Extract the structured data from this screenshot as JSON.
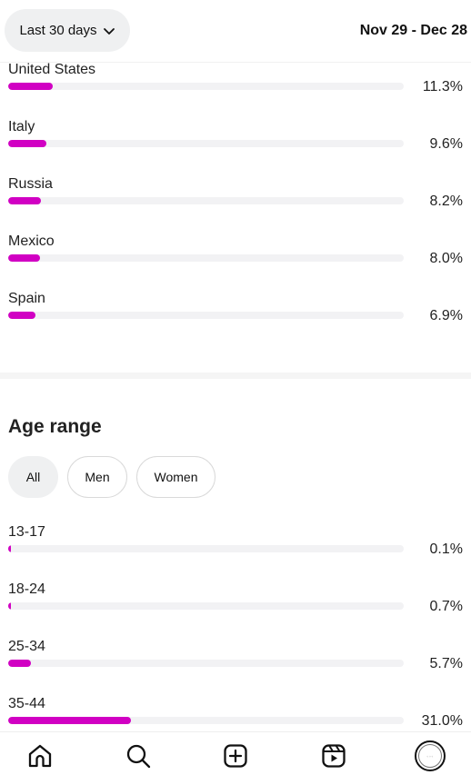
{
  "header": {
    "range_label": "Last 30 days",
    "date_range": "Nov 29 - Dec 28"
  },
  "colors": {
    "accent": "#d100c3",
    "track": "#f2f2f4"
  },
  "countries": [
    {
      "label": "United States",
      "value_text": "11.3%",
      "value": 11.3
    },
    {
      "label": "Italy",
      "value_text": "9.6%",
      "value": 9.6
    },
    {
      "label": "Russia",
      "value_text": "8.2%",
      "value": 8.2
    },
    {
      "label": "Mexico",
      "value_text": "8.0%",
      "value": 8.0
    },
    {
      "label": "Spain",
      "value_text": "6.9%",
      "value": 6.9
    }
  ],
  "age_section": {
    "title": "Age range",
    "filters": [
      "All",
      "Men",
      "Women"
    ],
    "selected_filter": "All",
    "rows": [
      {
        "label": "13-17",
        "value_text": "0.1%",
        "value": 0.1
      },
      {
        "label": "18-24",
        "value_text": "0.7%",
        "value": 0.7
      },
      {
        "label": "25-34",
        "value_text": "5.7%",
        "value": 5.7
      },
      {
        "label": "35-44",
        "value_text": "31.0%",
        "value": 31.0
      }
    ]
  },
  "bottom_nav": {
    "icons": [
      "home-icon",
      "search-icon",
      "create-icon",
      "reels-icon",
      "profile-avatar"
    ]
  }
}
